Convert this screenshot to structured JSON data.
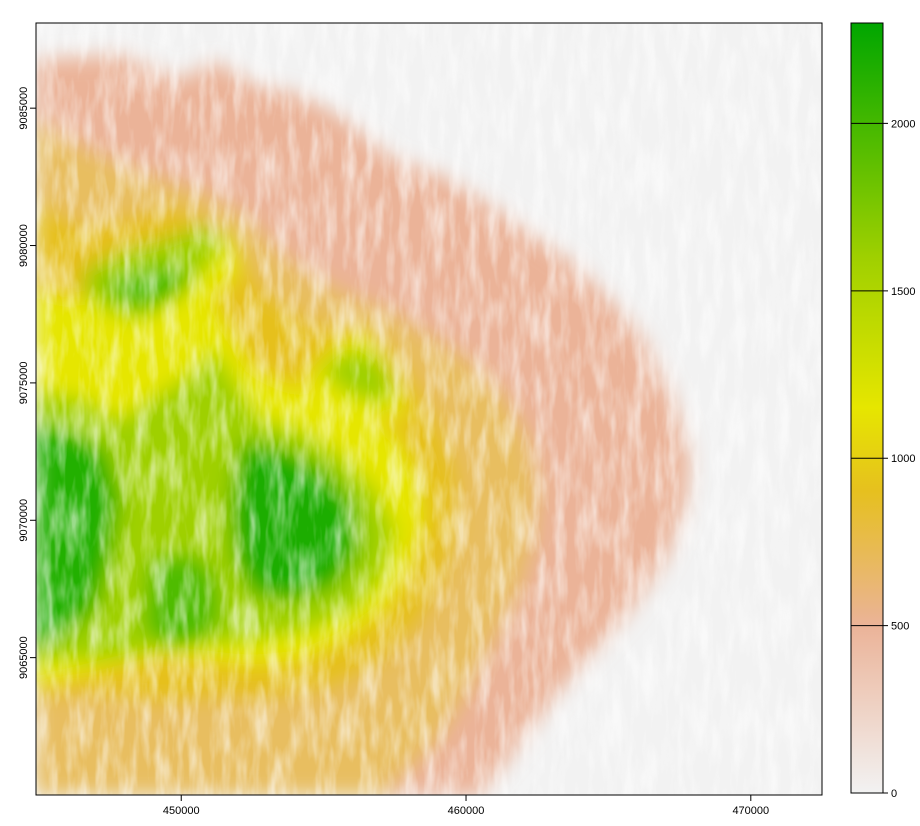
{
  "map": {
    "x_axis": {
      "ticks": [
        {
          "value": 450000,
          "label": "450000"
        },
        {
          "value": 460000,
          "label": "460000"
        },
        {
          "value": 470000,
          "label": "470000"
        }
      ]
    },
    "y_axis": {
      "ticks": [
        {
          "value": 9065000,
          "label": "9065000"
        },
        {
          "value": 9070000,
          "label": "9070000"
        },
        {
          "value": 9075000,
          "label": "9075000"
        },
        {
          "value": 9080000,
          "label": "9080000"
        },
        {
          "value": 9085000,
          "label": "9085000"
        }
      ]
    },
    "extent": {
      "xmin": 444900,
      "xmax": 472500,
      "ymin": 9060000,
      "ymax": 9088100
    },
    "colors": {
      "ramp": [
        "#F2F2F2",
        "#EBB398",
        "#E6C01F",
        "#E6E600",
        "#9FD000",
        "#00A600"
      ],
      "frame": "#000000"
    }
  },
  "legend": {
    "range": [
      0,
      2300
    ],
    "ticks": [
      {
        "value": 0,
        "label": "0"
      },
      {
        "value": 500,
        "label": "500"
      },
      {
        "value": 1000,
        "label": "1000"
      },
      {
        "value": 1500,
        "label": "1500"
      },
      {
        "value": 2000,
        "label": "2000"
      }
    ],
    "color_stops": [
      {
        "value": 0,
        "color": "#F2F2F2"
      },
      {
        "value": 500,
        "color": "#EBB398"
      },
      {
        "value": 900,
        "color": "#E6C01F"
      },
      {
        "value": 1150,
        "color": "#E6E600"
      },
      {
        "value": 1600,
        "color": "#9FD000"
      },
      {
        "value": 2300,
        "color": "#00A600"
      }
    ]
  }
}
